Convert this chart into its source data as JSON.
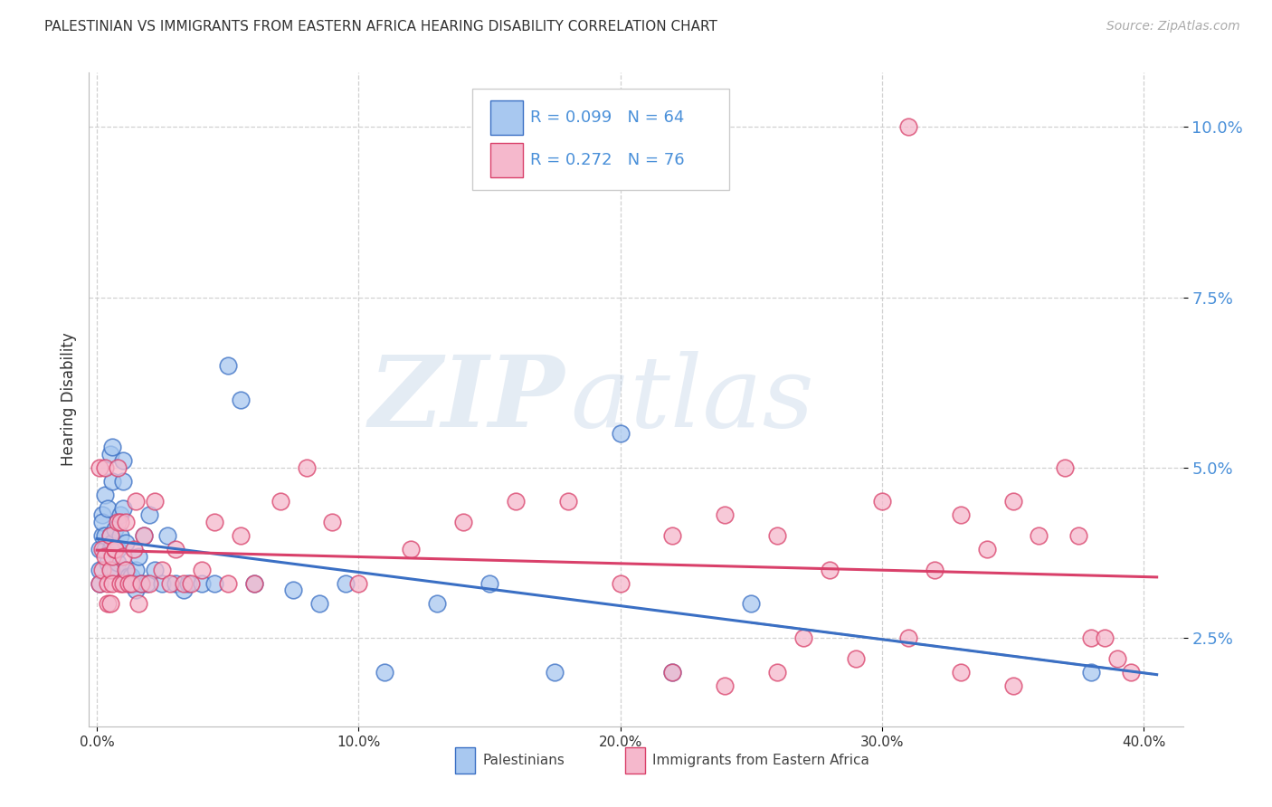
{
  "title": "PALESTINIAN VS IMMIGRANTS FROM EASTERN AFRICA HEARING DISABILITY CORRELATION CHART",
  "source": "Source: ZipAtlas.com",
  "ylabel": "Hearing Disability",
  "ylim": [
    0.012,
    0.108
  ],
  "xlim": [
    -0.003,
    0.415
  ],
  "series1_color": "#a8c8f0",
  "series2_color": "#f5b8cc",
  "trend1_color": "#3a6fc4",
  "trend2_color": "#d9406a",
  "legend_color": "#4a90d9",
  "legend_R1": "R = 0.099",
  "legend_N1": "N = 64",
  "legend_R2": "R = 0.272",
  "legend_N2": "N = 76",
  "legend_label1": "Palestinians",
  "legend_label2": "Immigrants from Eastern Africa",
  "watermark_zip": "ZIP",
  "watermark_atlas": "atlas",
  "grid_color": "#cccccc",
  "bg_color": "#ffffff",
  "tick_color": "#4a90d9",
  "ytick_positions": [
    0.025,
    0.05,
    0.075,
    0.1
  ],
  "ytick_labels": [
    "2.5%",
    "5.0%",
    "7.5%",
    "10.0%"
  ],
  "xtick_positions": [
    0.0,
    0.1,
    0.2,
    0.3,
    0.4
  ],
  "xtick_labels": [
    "0.0%",
    "10.0%",
    "20.0%",
    "30.0%",
    "40.0%"
  ],
  "palestinians_x": [
    0.001,
    0.001,
    0.001,
    0.002,
    0.002,
    0.002,
    0.003,
    0.003,
    0.003,
    0.004,
    0.004,
    0.005,
    0.005,
    0.005,
    0.006,
    0.006,
    0.006,
    0.006,
    0.007,
    0.007,
    0.007,
    0.008,
    0.008,
    0.009,
    0.009,
    0.01,
    0.01,
    0.01,
    0.011,
    0.011,
    0.012,
    0.012,
    0.013,
    0.013,
    0.014,
    0.015,
    0.015,
    0.016,
    0.017,
    0.018,
    0.019,
    0.02,
    0.022,
    0.025,
    0.027,
    0.03,
    0.033,
    0.035,
    0.04,
    0.045,
    0.05,
    0.055,
    0.06,
    0.075,
    0.085,
    0.095,
    0.11,
    0.13,
    0.15,
    0.175,
    0.2,
    0.22,
    0.25,
    0.38
  ],
  "palestinians_y": [
    0.033,
    0.038,
    0.035,
    0.043,
    0.04,
    0.042,
    0.038,
    0.04,
    0.046,
    0.044,
    0.036,
    0.04,
    0.052,
    0.038,
    0.035,
    0.039,
    0.048,
    0.053,
    0.041,
    0.035,
    0.038,
    0.036,
    0.038,
    0.043,
    0.04,
    0.048,
    0.051,
    0.044,
    0.035,
    0.039,
    0.033,
    0.034,
    0.033,
    0.034,
    0.033,
    0.032,
    0.035,
    0.037,
    0.033,
    0.04,
    0.033,
    0.043,
    0.035,
    0.033,
    0.04,
    0.033,
    0.032,
    0.033,
    0.033,
    0.033,
    0.065,
    0.06,
    0.033,
    0.032,
    0.03,
    0.033,
    0.02,
    0.03,
    0.033,
    0.02,
    0.055,
    0.02,
    0.03,
    0.02
  ],
  "eastern_africa_x": [
    0.001,
    0.001,
    0.002,
    0.002,
    0.003,
    0.003,
    0.004,
    0.004,
    0.005,
    0.005,
    0.005,
    0.006,
    0.006,
    0.007,
    0.007,
    0.008,
    0.008,
    0.009,
    0.009,
    0.01,
    0.01,
    0.011,
    0.011,
    0.012,
    0.013,
    0.014,
    0.015,
    0.016,
    0.017,
    0.018,
    0.02,
    0.022,
    0.025,
    0.028,
    0.03,
    0.033,
    0.036,
    0.04,
    0.045,
    0.05,
    0.055,
    0.06,
    0.07,
    0.08,
    0.09,
    0.1,
    0.12,
    0.14,
    0.16,
    0.18,
    0.2,
    0.22,
    0.24,
    0.26,
    0.28,
    0.3,
    0.31,
    0.32,
    0.33,
    0.34,
    0.35,
    0.36,
    0.37,
    0.375,
    0.38,
    0.385,
    0.39,
    0.395,
    0.35,
    0.33,
    0.31,
    0.29,
    0.27,
    0.26,
    0.24,
    0.22
  ],
  "eastern_africa_y": [
    0.033,
    0.05,
    0.038,
    0.035,
    0.05,
    0.037,
    0.03,
    0.033,
    0.03,
    0.04,
    0.035,
    0.037,
    0.033,
    0.038,
    0.038,
    0.042,
    0.05,
    0.042,
    0.033,
    0.037,
    0.033,
    0.035,
    0.042,
    0.033,
    0.033,
    0.038,
    0.045,
    0.03,
    0.033,
    0.04,
    0.033,
    0.045,
    0.035,
    0.033,
    0.038,
    0.033,
    0.033,
    0.035,
    0.042,
    0.033,
    0.04,
    0.033,
    0.045,
    0.05,
    0.042,
    0.033,
    0.038,
    0.042,
    0.045,
    0.045,
    0.033,
    0.04,
    0.043,
    0.04,
    0.035,
    0.045,
    0.1,
    0.035,
    0.043,
    0.038,
    0.045,
    0.04,
    0.05,
    0.04,
    0.025,
    0.025,
    0.022,
    0.02,
    0.018,
    0.02,
    0.025,
    0.022,
    0.025,
    0.02,
    0.018,
    0.02
  ]
}
